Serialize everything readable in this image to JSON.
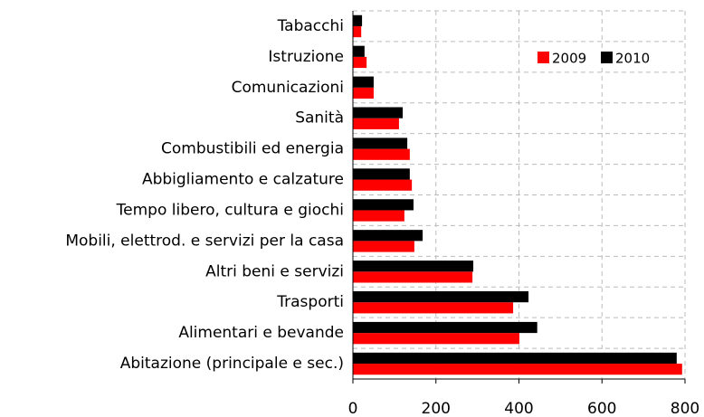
{
  "chart_data": {
    "type": "hbar",
    "categories": [
      "Tabacchi",
      "Istruzione",
      "Comunicazioni",
      "Sanità",
      "Combustibili ed energia",
      "Abbigliamento e calzature",
      "Tempo libero, cultura e giochi",
      "Mobili, elettrod. e servizi per la casa",
      "Altri beni e servizi",
      "Trasporti",
      "Alimentari e bevande",
      "Abitazione (principale e sec.)"
    ],
    "series": [
      {
        "name": "2009",
        "color": "#ff0000",
        "values": [
          20,
          33,
          50,
          111,
          137,
          142,
          124,
          148,
          288,
          386,
          401,
          793
        ]
      },
      {
        "name": "2010",
        "color": "#000000",
        "values": [
          22,
          28,
          50,
          120,
          131,
          137,
          146,
          168,
          290,
          423,
          444,
          780
        ]
      }
    ],
    "xlim": [
      0,
      800
    ],
    "xticks": [
      0,
      200,
      400,
      600,
      800
    ],
    "grid": true,
    "legend": "top-right"
  }
}
